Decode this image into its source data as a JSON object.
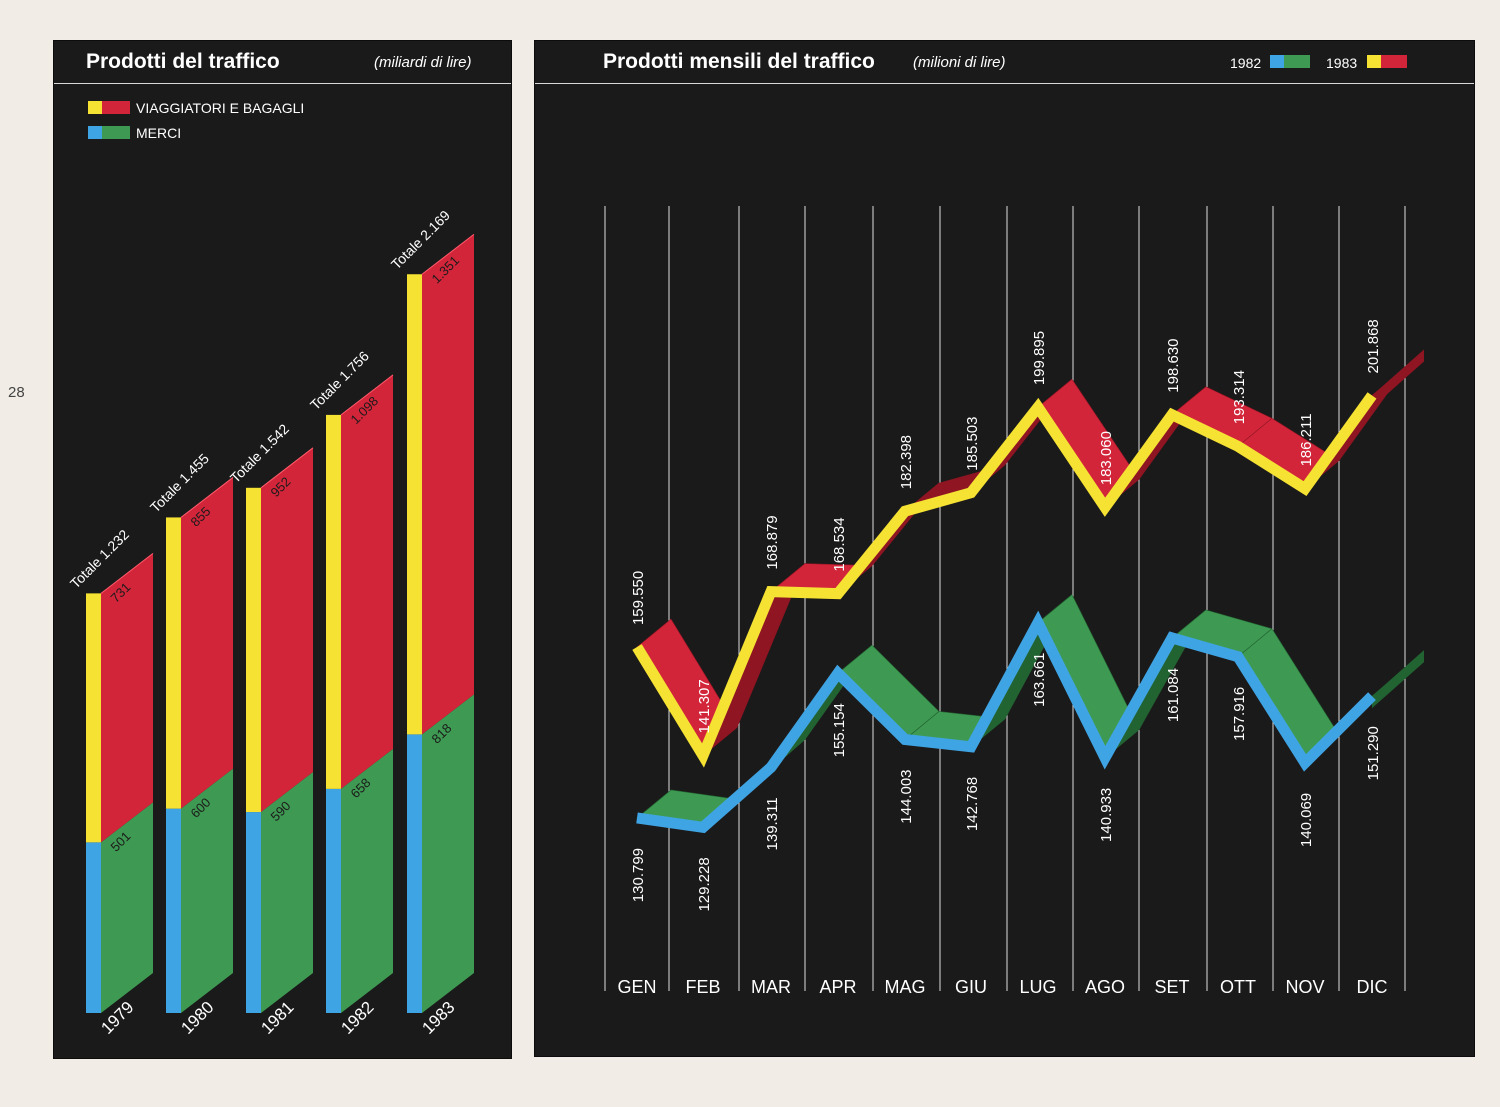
{
  "page_number": "28",
  "colors": {
    "background": "#1b1a1a",
    "page": "#f1ede6",
    "yellow": "#f5e233",
    "red": "#d2253a",
    "red_dark": "#8f1522",
    "blue": "#3fa4e4",
    "green": "#3e9a52",
    "green_dark": "#226332",
    "line": "#dddddd",
    "text": "#ffffff"
  },
  "left_chart": {
    "title": "Prodotti del traffico",
    "subtitle": "(miliardi di lire)",
    "legend": [
      {
        "label": "VIAGGIATORI E BAGAGLI",
        "colors": [
          "#f5e233",
          "#d2253a"
        ]
      },
      {
        "label": "MERCI",
        "colors": [
          "#3fa4e4",
          "#3e9a52"
        ]
      }
    ]
  },
  "right_chart": {
    "title": "Prodotti mensili del traffico",
    "subtitle": "(milioni di lire)",
    "legend": [
      {
        "label": "1982",
        "colors": [
          "#3fa4e4",
          "#3e9a52"
        ]
      },
      {
        "label": "1983",
        "colors": [
          "#f5e233",
          "#d2253a"
        ]
      }
    ]
  },
  "chart_data": [
    {
      "type": "bar",
      "title": "Prodotti del traffico",
      "subtitle": "(miliardi di lire)",
      "stacked": true,
      "three_d": true,
      "categories": [
        "1979",
        "1980",
        "1981",
        "1982",
        "1983"
      ],
      "series": [
        {
          "name": "MERCI",
          "values": [
            501,
            600,
            590,
            658,
            818
          ],
          "labels": [
            "501",
            "600",
            "590",
            "658",
            "818"
          ]
        },
        {
          "name": "VIAGGIATORI E BAGAGLI",
          "values": [
            731,
            855,
            952,
            1098,
            1351
          ],
          "labels": [
            "731",
            "855",
            "952",
            "1.098",
            "1.351"
          ]
        }
      ],
      "totals": [
        1232,
        1455,
        1542,
        1756,
        2169
      ],
      "total_labels": [
        "Totale 1.232",
        "Totale 1.455",
        "Totale 1.542",
        "Totale 1.756",
        "Totale 2.169"
      ],
      "legend_position": "top-left"
    },
    {
      "type": "line",
      "title": "Prodotti mensili del traffico",
      "subtitle": "(milioni di lire)",
      "three_d": true,
      "x": [
        "GEN",
        "FEB",
        "MAR",
        "APR",
        "MAG",
        "GIU",
        "LUG",
        "AGO",
        "SET",
        "OTT",
        "NOV",
        "DIC"
      ],
      "series": [
        {
          "name": "1982",
          "values": [
            130799,
            129228,
            139311,
            155154,
            144003,
            142768,
            163661,
            140933,
            161084,
            157916,
            140069,
            151290
          ],
          "labels": [
            "130.799",
            "129.228",
            "139.311",
            "155.154",
            "144.003",
            "142.768",
            "163.661",
            "140.933",
            "161.084",
            "157.916",
            "140.069",
            "151.290"
          ]
        },
        {
          "name": "1983",
          "values": [
            159550,
            141307,
            168879,
            168534,
            182398,
            185503,
            199895,
            183060,
            198630,
            193314,
            186211,
            201868
          ],
          "labels": [
            "159.550",
            "141.307",
            "168.879",
            "168.534",
            "182.398",
            "185.503",
            "199.895",
            "183.060",
            "198.630",
            "193.314",
            "186.211",
            "201.868"
          ]
        }
      ],
      "grid": "vertical",
      "legend_position": "top-right"
    }
  ]
}
